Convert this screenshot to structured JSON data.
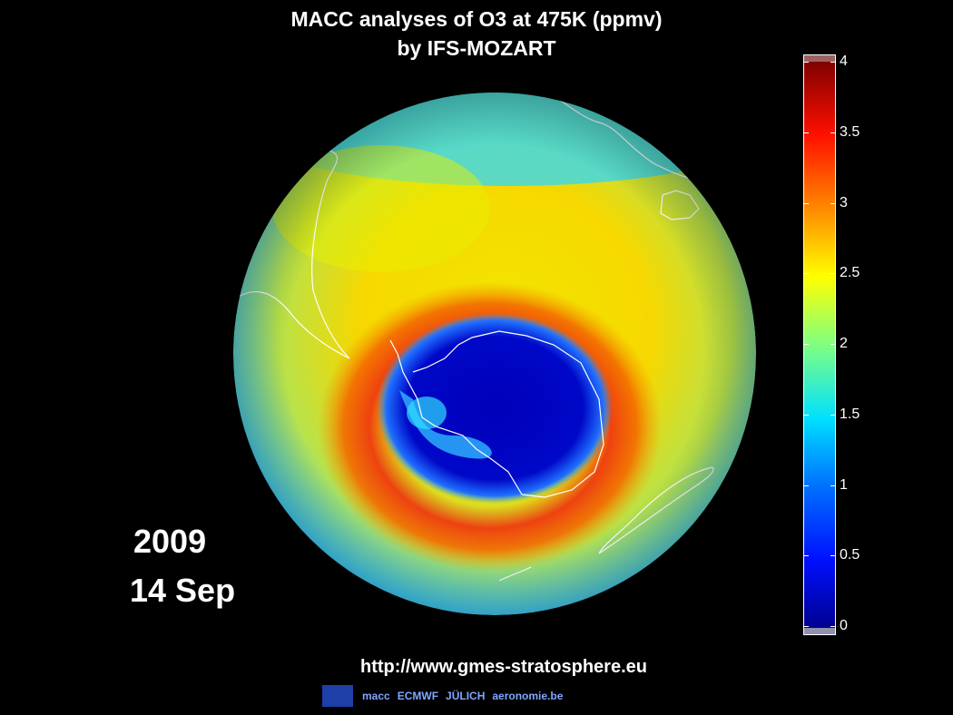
{
  "title": {
    "line1": "MACC analyses of O3 at 475K (ppmv)",
    "line2": "by IFS-MOZART"
  },
  "date": {
    "year": "2009",
    "day": "14 Sep"
  },
  "colorbar": {
    "min": 0,
    "max": 4,
    "tick_labels": [
      "4",
      "3.5",
      "3",
      "2.5",
      "2",
      "1.5",
      "1",
      "0.5",
      "0"
    ]
  },
  "footer": {
    "url": "http://www.gmes-stratosphere.eu",
    "logos": [
      "macc",
      "ECMWF",
      "JÜLICH",
      "aeronomie.be"
    ]
  },
  "colors": {
    "background": "#000000",
    "low": "#0000a0",
    "mid": "#00e0ff",
    "high": "#8b0000"
  }
}
